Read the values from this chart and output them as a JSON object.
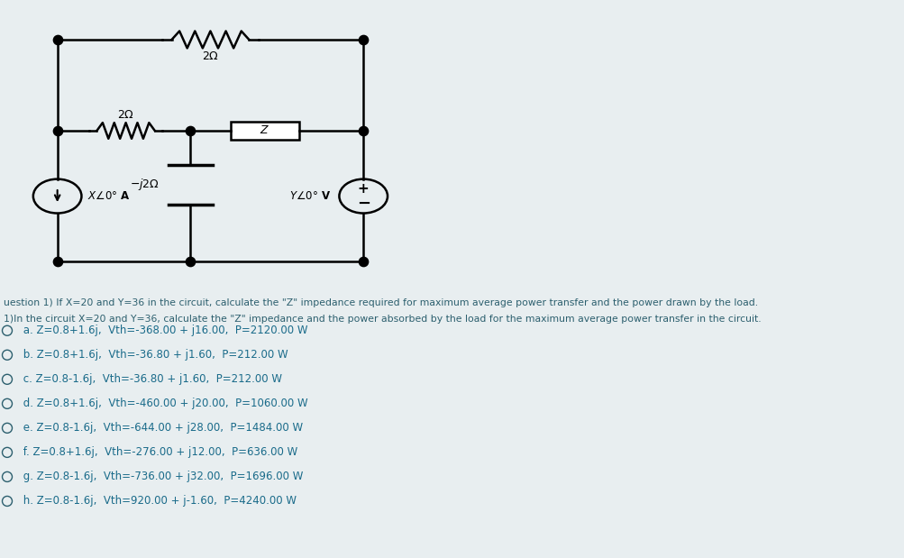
{
  "bg_color": "#e8eef0",
  "circuit_bg": "#ffffff",
  "text_color": "#2c5f6e",
  "option_color": "#1a6b8a",
  "question_text1": "uestion 1) If X=20 and Y=36 in the circuit, calculate the \"Z\" impedance required for maximum average power transfer and the power drawn by the load.",
  "question_text2": "1)In the circuit X=20 and Y=36, calculate the \"Z\" impedance and the power absorbed by the load for the maximum average power transfer in the circuit.",
  "options": [
    " a. Z=0.8+1.6j,  Vth=-368.00 + j16.00,  P=2120.00 W",
    " b. Z=0.8+1.6j,  Vth=-36.80 + j1.60,  P=212.00 W",
    " c. Z=0.8-1.6j,  Vth=-36.80 + j1.60,  P=212.00 W",
    " d. Z=0.8+1.6j,  Vth=-460.00 + j20.00,  P=1060.00 W",
    " e. Z=0.8-1.6j,  Vth=-644.00 + j28.00,  P=1484.00 W",
    " f. Z=0.8+1.6j,  Vth=-276.00 + j12.00,  P=636.00 W",
    " g. Z=0.8-1.6j,  Vth=-736.00 + j32.00,  P=1696.00 W",
    " h. Z=0.8-1.6j,  Vth=920.00 + j-1.60,  P=4240.00 W"
  ]
}
